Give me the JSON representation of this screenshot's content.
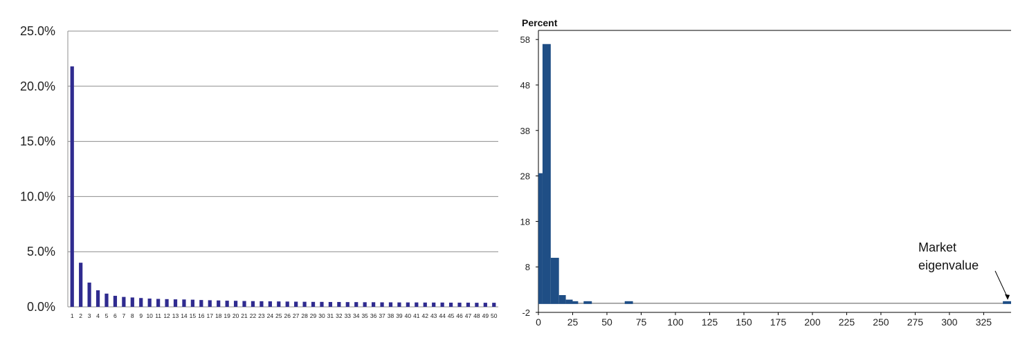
{
  "chart_data": [
    {
      "type": "bar",
      "title": "",
      "xlabel": "",
      "ylabel": "",
      "ylim": [
        0,
        25
      ],
      "y_ticks": [
        "0.0%",
        "5.0%",
        "10.0%",
        "15.0%",
        "20.0%",
        "25.0%"
      ],
      "grid": true,
      "color": "#2f2b8f",
      "categories": [
        "1",
        "2",
        "3",
        "4",
        "5",
        "6",
        "7",
        "8",
        "9",
        "10",
        "11",
        "12",
        "13",
        "14",
        "15",
        "16",
        "17",
        "18",
        "19",
        "20",
        "21",
        "22",
        "23",
        "24",
        "25",
        "26",
        "27",
        "28",
        "29",
        "30",
        "31",
        "32",
        "33",
        "34",
        "35",
        "36",
        "37",
        "38",
        "39",
        "40",
        "41",
        "42",
        "43",
        "44",
        "45",
        "46",
        "47",
        "48",
        "49",
        "50"
      ],
      "values": [
        21.8,
        4.0,
        2.2,
        1.5,
        1.2,
        1.0,
        0.9,
        0.85,
        0.8,
        0.75,
        0.72,
        0.7,
        0.68,
        0.67,
        0.65,
        0.62,
        0.6,
        0.58,
        0.56,
        0.55,
        0.53,
        0.52,
        0.51,
        0.5,
        0.49,
        0.48,
        0.47,
        0.46,
        0.45,
        0.45,
        0.44,
        0.44,
        0.43,
        0.43,
        0.42,
        0.42,
        0.41,
        0.41,
        0.4,
        0.4,
        0.4,
        0.39,
        0.39,
        0.39,
        0.38,
        0.38,
        0.38,
        0.37,
        0.37,
        0.37
      ]
    },
    {
      "type": "bar",
      "title": "Percent",
      "xlabel": "",
      "ylabel": "Percent",
      "xlim": [
        0,
        345
      ],
      "ylim": [
        -2,
        60
      ],
      "x_ticks": [
        "0",
        "25",
        "50",
        "75",
        "100",
        "125",
        "150",
        "175",
        "200",
        "225",
        "250",
        "275",
        "300",
        "325"
      ],
      "y_ticks": [
        "-2",
        "8",
        "18",
        "28",
        "38",
        "48",
        "58"
      ],
      "grid": false,
      "color": "#1f4e85",
      "bins": [
        {
          "x0": 0,
          "x1": 3,
          "y": 28.6
        },
        {
          "x0": 3,
          "x1": 9,
          "y": 57.0
        },
        {
          "x0": 9,
          "x1": 15,
          "y": 10.0
        },
        {
          "x0": 15,
          "x1": 20,
          "y": 1.8
        },
        {
          "x0": 20,
          "x1": 25,
          "y": 0.8
        },
        {
          "x0": 25,
          "x1": 29,
          "y": 0.3
        },
        {
          "x0": 33,
          "x1": 39,
          "y": 0.3
        },
        {
          "x0": 63,
          "x1": 69,
          "y": 0.3
        },
        {
          "x0": 339,
          "x1": 345,
          "y": 0.3
        }
      ],
      "annotation": {
        "text_line1": "Market",
        "text_line2": "eigenvalue",
        "x": 342,
        "y": 0.3
      }
    }
  ]
}
